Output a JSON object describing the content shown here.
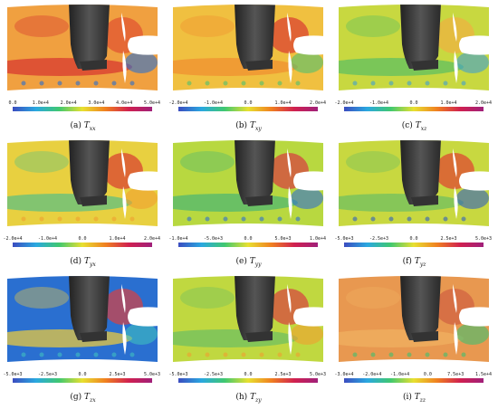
{
  "panels": [
    {
      "label": "(a)",
      "symbol": "T",
      "subscript": "xx",
      "ticks": [
        "0.0",
        "1.0e+4",
        "2.0e+4",
        "3.0e+4",
        "4.0e+4",
        "5.0e+4"
      ]
    },
    {
      "label": "(b)",
      "symbol": "T",
      "subscript": "xy",
      "ticks": [
        "-2.0e+4",
        "-1.0e+4",
        "0.0",
        "1.0e+4",
        "2.0e+4"
      ]
    },
    {
      "label": "(c)",
      "symbol": "T",
      "subscript": "xz",
      "ticks": [
        "-2.0e+4",
        "-1.0e+4",
        "0.0",
        "1.0e+4",
        "2.0e+4"
      ]
    },
    {
      "label": "(d)",
      "symbol": "T",
      "subscript": "yx",
      "ticks": [
        "-2.0e+4",
        "-1.0e+4",
        "0.0",
        "1.0e+4",
        "2.0e+4"
      ]
    },
    {
      "label": "(e)",
      "symbol": "T",
      "subscript": "yy",
      "ticks": [
        "-1.0e+4",
        "-5.0e+3",
        "0.0",
        "5.0e+3",
        "1.0e+4"
      ]
    },
    {
      "label": "(f)",
      "symbol": "T",
      "subscript": "yz",
      "ticks": [
        "-5.0e+3",
        "-2.5e+3",
        "0.0",
        "2.5e+3",
        "5.0e+3"
      ]
    },
    {
      "label": "(g)",
      "symbol": "T",
      "subscript": "zx",
      "ticks": [
        "-5.0e+3",
        "-2.5e+3",
        "0.0",
        "2.5e+3",
        "5.0e+3"
      ]
    },
    {
      "label": "(h)",
      "symbol": "T",
      "subscript": "zy",
      "ticks": [
        "-5.0e+3",
        "-2.5e+3",
        "0.0",
        "2.5e+3",
        "5.0e+3"
      ]
    },
    {
      "label": "(i)",
      "symbol": "T",
      "subscript": "zz",
      "ticks": [
        "-3.0e+4",
        "-2.0e+4",
        "-1.0e+4",
        "0.0",
        "7.5e+3",
        "1.5e+4"
      ]
    }
  ]
}
